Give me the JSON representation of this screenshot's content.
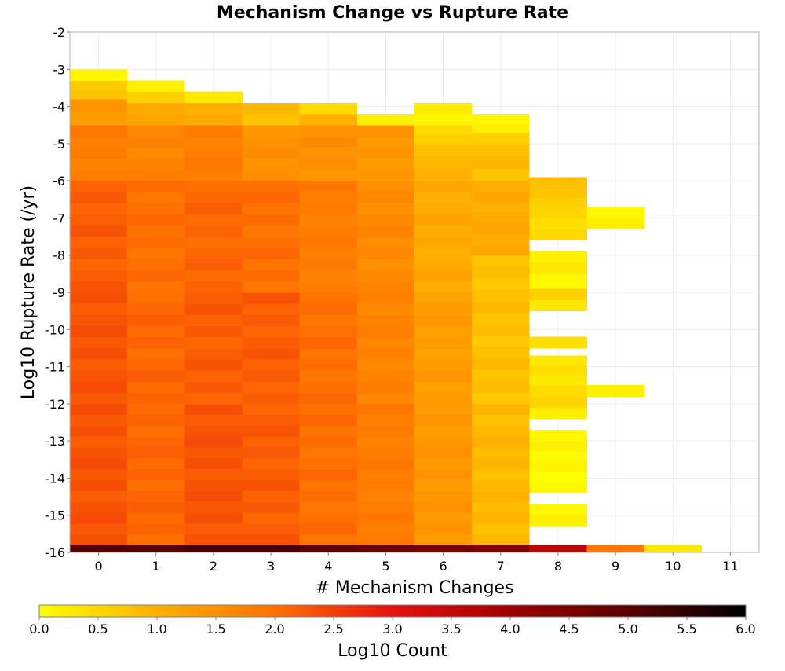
{
  "chart_data": {
    "type": "heatmap",
    "title": "Mechanism Change vs Rupture Rate",
    "xlabel": "# Mechanism Changes",
    "ylabel": "Log10 Rupture Rate (/yr)",
    "x_categories": [
      0,
      1,
      2,
      3,
      4,
      5,
      6,
      7,
      8,
      9,
      10,
      11
    ],
    "x_tick_labels": [
      "0",
      "1",
      "2",
      "3",
      "4",
      "5",
      "6",
      "7",
      "8",
      "9",
      "10",
      "11"
    ],
    "ylim": [
      -16,
      -2
    ],
    "y_ticks": [
      -2,
      -3,
      -4,
      -5,
      -6,
      -7,
      -8,
      -9,
      -10,
      -11,
      -12,
      -13,
      -14,
      -15,
      -16
    ],
    "y_tick_labels": [
      "-2",
      "-3",
      "-4",
      "-5",
      "-6",
      "-7",
      "-8",
      "-9",
      "-10",
      "-11",
      "-12",
      "-13",
      "-14",
      "-15",
      "-16"
    ],
    "y_bin_width": 0.3,
    "grid": true,
    "colorscale": {
      "label": "Log10 Count",
      "range": [
        0.0,
        6.0
      ],
      "ticks": [
        "0.0",
        "0.5",
        "1.0",
        "1.5",
        "2.0",
        "2.5",
        "3.0",
        "3.5",
        "4.0",
        "4.5",
        "5.0",
        "5.5",
        "6.0"
      ],
      "stops": [
        {
          "value": 0.0,
          "color": "#ffff00"
        },
        {
          "value": 1.0,
          "color": "#ffb000"
        },
        {
          "value": 2.0,
          "color": "#ff7000"
        },
        {
          "value": 3.0,
          "color": "#e81010"
        },
        {
          "value": 4.0,
          "color": "#a00000"
        },
        {
          "value": 5.0,
          "color": "#5a0000"
        },
        {
          "value": 6.0,
          "color": "#000000"
        }
      ]
    },
    "columns": [
      {
        "x": 0,
        "top": -3.0,
        "cells": [
          {
            "y0": -16.0,
            "y1": -15.8,
            "v": 5.0
          },
          {
            "y0": -15.8,
            "y1": -12.0,
            "v": 2.3
          },
          {
            "y0": -12.0,
            "y1": -9.0,
            "v": 2.3
          },
          {
            "y0": -9.0,
            "y1": -6.0,
            "v": 2.2
          },
          {
            "y0": -6.0,
            "y1": -4.5,
            "v": 1.8
          },
          {
            "y0": -4.5,
            "y1": -3.8,
            "v": 1.4
          },
          {
            "y0": -3.8,
            "y1": -3.3,
            "v": 0.7
          },
          {
            "y0": -3.3,
            "y1": -3.0,
            "v": 0.1
          }
        ]
      },
      {
        "x": 1,
        "top": -3.3,
        "cells": [
          {
            "y0": -16.0,
            "y1": -15.8,
            "v": 5.0
          },
          {
            "y0": -15.8,
            "y1": -12.0,
            "v": 2.1
          },
          {
            "y0": -12.0,
            "y1": -9.0,
            "v": 2.1
          },
          {
            "y0": -9.0,
            "y1": -6.0,
            "v": 2.0
          },
          {
            "y0": -6.0,
            "y1": -4.5,
            "v": 1.7
          },
          {
            "y0": -4.5,
            "y1": -3.9,
            "v": 1.2
          },
          {
            "y0": -3.9,
            "y1": -3.6,
            "v": 0.6
          },
          {
            "y0": -3.6,
            "y1": -3.3,
            "v": 0.2
          }
        ]
      },
      {
        "x": 2,
        "top": -3.6,
        "cells": [
          {
            "y0": -16.0,
            "y1": -15.8,
            "v": 5.2
          },
          {
            "y0": -15.8,
            "y1": -12.0,
            "v": 2.3
          },
          {
            "y0": -12.0,
            "y1": -9.0,
            "v": 2.2
          },
          {
            "y0": -9.0,
            "y1": -6.0,
            "v": 2.1
          },
          {
            "y0": -6.0,
            "y1": -4.5,
            "v": 1.8
          },
          {
            "y0": -4.5,
            "y1": -3.9,
            "v": 1.0
          },
          {
            "y0": -3.9,
            "y1": -3.6,
            "v": 0.3
          }
        ]
      },
      {
        "x": 3,
        "top": -3.9,
        "cells": [
          {
            "y0": -16.0,
            "y1": -15.8,
            "v": 5.2
          },
          {
            "y0": -15.8,
            "y1": -12.0,
            "v": 2.2
          },
          {
            "y0": -12.0,
            "y1": -9.0,
            "v": 2.2
          },
          {
            "y0": -9.0,
            "y1": -6.0,
            "v": 2.0
          },
          {
            "y0": -6.0,
            "y1": -4.5,
            "v": 1.5
          },
          {
            "y0": -4.5,
            "y1": -3.9,
            "v": 0.8
          }
        ]
      },
      {
        "x": 4,
        "top": -3.9,
        "cells": [
          {
            "y0": -16.0,
            "y1": -15.8,
            "v": 5.0
          },
          {
            "y0": -15.8,
            "y1": -12.0,
            "v": 2.0
          },
          {
            "y0": -12.0,
            "y1": -9.0,
            "v": 2.0
          },
          {
            "y0": -9.0,
            "y1": -6.0,
            "v": 1.8
          },
          {
            "y0": -6.0,
            "y1": -4.5,
            "v": 1.5
          },
          {
            "y0": -4.5,
            "y1": -4.2,
            "v": 1.0
          },
          {
            "y0": -4.2,
            "y1": -3.9,
            "v": 0.5
          }
        ]
      },
      {
        "x": 5,
        "top": -4.2,
        "cells": [
          {
            "y0": -16.0,
            "y1": -15.8,
            "v": 4.8
          },
          {
            "y0": -15.8,
            "y1": -12.0,
            "v": 1.8
          },
          {
            "y0": -12.0,
            "y1": -9.0,
            "v": 1.7
          },
          {
            "y0": -9.0,
            "y1": -6.0,
            "v": 1.6
          },
          {
            "y0": -6.0,
            "y1": -4.5,
            "v": 1.4
          },
          {
            "y0": -4.5,
            "y1": -4.2,
            "v": 0.2
          }
        ]
      },
      {
        "x": 6,
        "top": -3.9,
        "cells": [
          {
            "y0": -16.0,
            "y1": -15.8,
            "v": 4.6
          },
          {
            "y0": -15.8,
            "y1": -12.0,
            "v": 1.4
          },
          {
            "y0": -12.0,
            "y1": -9.0,
            "v": 1.3
          },
          {
            "y0": -9.0,
            "y1": -6.0,
            "v": 1.1
          },
          {
            "y0": -6.0,
            "y1": -5.0,
            "v": 0.9
          },
          {
            "y0": -5.0,
            "y1": -4.5,
            "v": 0.6
          },
          {
            "y0": -4.5,
            "y1": -3.9,
            "v": 0.2
          }
        ]
      },
      {
        "x": 7,
        "top": -4.2,
        "cells": [
          {
            "y0": -16.0,
            "y1": -15.8,
            "v": 4.4
          },
          {
            "y0": -15.8,
            "y1": -12.0,
            "v": 0.9
          },
          {
            "y0": -12.0,
            "y1": -8.0,
            "v": 0.8
          },
          {
            "y0": -8.0,
            "y1": -6.0,
            "v": 1.1
          },
          {
            "y0": -6.0,
            "y1": -5.0,
            "v": 0.8
          },
          {
            "y0": -5.0,
            "y1": -4.7,
            "v": 0.6
          },
          {
            "y0": -4.7,
            "y1": -4.2,
            "v": 0.2
          }
        ]
      },
      {
        "x": 8,
        "top": -5.9,
        "cells": [
          {
            "y0": -16.0,
            "y1": -15.8,
            "v": 3.6
          },
          {
            "y0": -15.3,
            "y1": -14.7,
            "v": 0.1
          },
          {
            "y0": -14.4,
            "y1": -12.7,
            "v": 0.1
          },
          {
            "y0": -12.4,
            "y1": -12.1,
            "v": 0.2
          },
          {
            "y0": -12.1,
            "y1": -11.5,
            "v": 0.5
          },
          {
            "y0": -11.5,
            "y1": -10.7,
            "v": 0.3
          },
          {
            "y0": -10.5,
            "y1": -10.2,
            "v": 0.4
          },
          {
            "y0": -9.5,
            "y1": -9.2,
            "v": 0.3
          },
          {
            "y0": -9.2,
            "y1": -8.9,
            "v": 0.6
          },
          {
            "y0": -8.9,
            "y1": -8.5,
            "v": 0.1
          },
          {
            "y0": -8.5,
            "y1": -8.2,
            "v": 0.3
          },
          {
            "y0": -8.2,
            "y1": -7.9,
            "v": 0.2
          },
          {
            "y0": -7.6,
            "y1": -6.7,
            "v": 0.5
          },
          {
            "y0": -6.7,
            "y1": -6.2,
            "v": 0.7
          },
          {
            "y0": -6.2,
            "y1": -5.9,
            "v": 0.8
          }
        ]
      },
      {
        "x": 9,
        "top": -6.7,
        "cells": [
          {
            "y0": -16.0,
            "y1": -15.8,
            "v": 1.9
          },
          {
            "y0": -11.8,
            "y1": -11.5,
            "v": 0.2
          },
          {
            "y0": -7.3,
            "y1": -6.7,
            "v": 0.1
          }
        ]
      },
      {
        "x": 10,
        "top": -15.8,
        "cells": [
          {
            "y0": -16.0,
            "y1": -15.8,
            "v": 0.3
          }
        ]
      },
      {
        "x": 11,
        "top": null,
        "cells": []
      }
    ]
  }
}
